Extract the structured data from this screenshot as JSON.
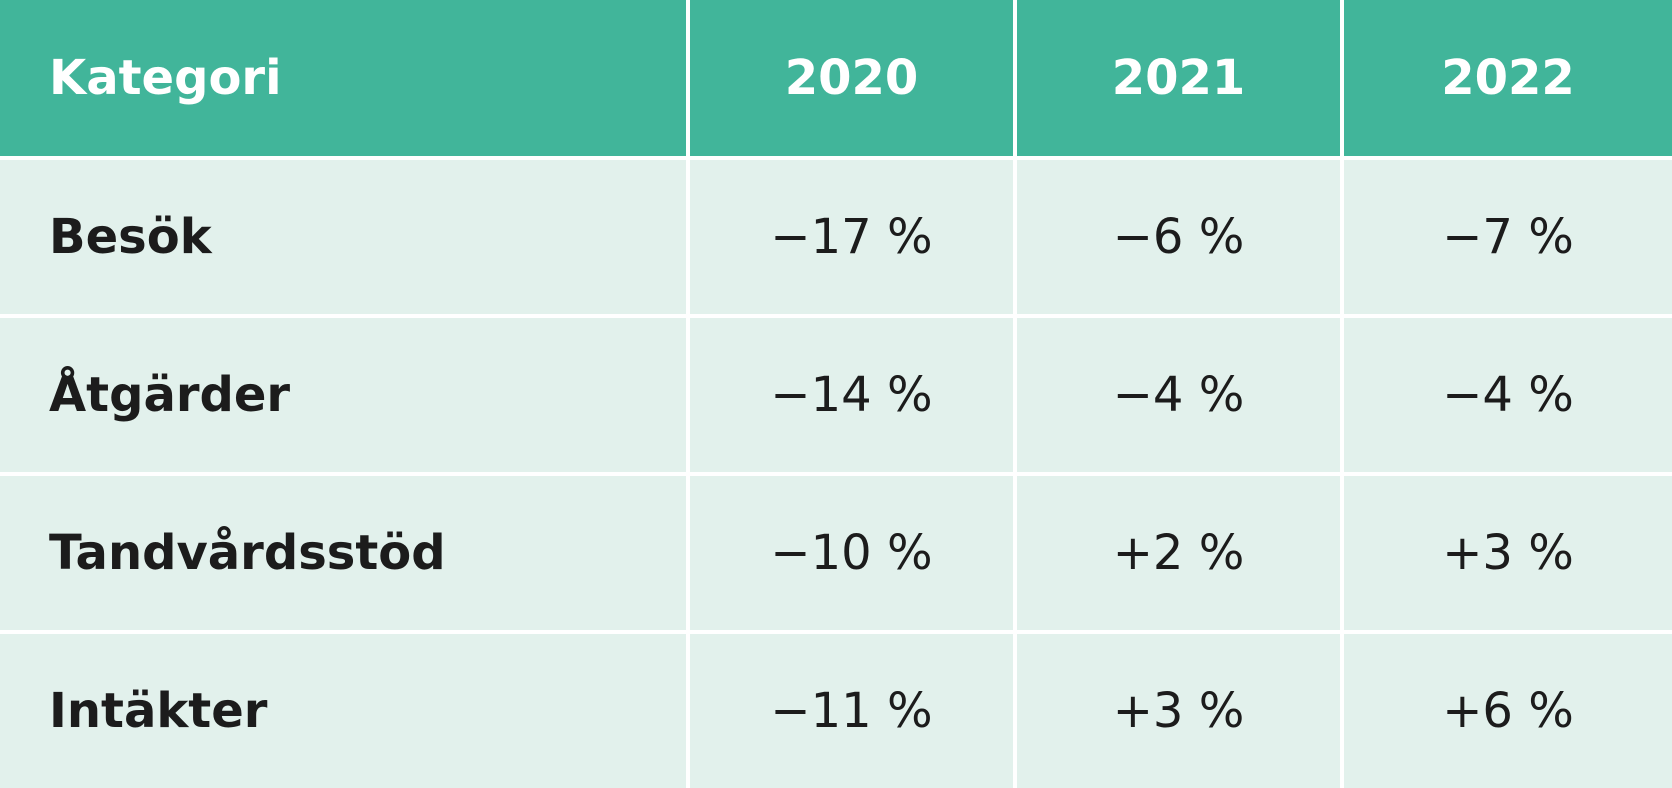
{
  "table": {
    "header": [
      "Kategori",
      "2020",
      "2021",
      "2022"
    ],
    "rows": [
      [
        "Besök",
        "−17 %",
        "−6 %",
        "−7 %"
      ],
      [
        "Åtgärder",
        "−14 %",
        "−4 %",
        "−4 %"
      ],
      [
        "Tandvårdsstöd",
        "−10 %",
        "+2 %",
        "+3 %"
      ],
      [
        "Intäkter",
        "−11 %",
        "+3 %",
        "+6 %"
      ]
    ]
  }
}
